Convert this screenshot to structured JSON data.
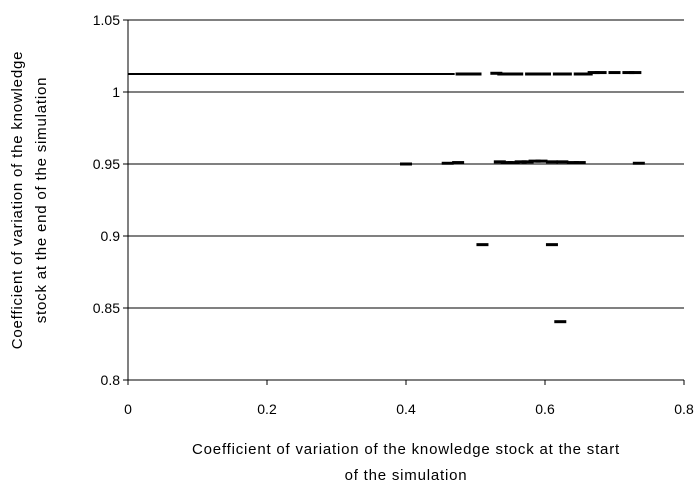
{
  "chart_data": {
    "type": "scatter",
    "title": "",
    "xlabel_lines": [
      "Coefficient of variation of the knowledge stock at the start",
      "of the simulation"
    ],
    "ylabel_lines": [
      "Coefficient of variation of the knowledge",
      "stock at the end of the simulation"
    ],
    "xlim": [
      0,
      0.8
    ],
    "ylim": [
      0.8,
      1.05
    ],
    "x_ticks": [
      "0",
      "0.2",
      "0.4",
      "0.6",
      "0.8"
    ],
    "y_ticks": [
      "0.8",
      "0.85",
      "0.9",
      "0.95",
      "1",
      "1.05"
    ],
    "x_tick_values": [
      0,
      0.2,
      0.4,
      0.6,
      0.8
    ],
    "y_tick_values": [
      0.8,
      0.85,
      0.9,
      0.95,
      1.0,
      1.05
    ],
    "gridlines": "horizontal",
    "legend": "none",
    "marker": "dash",
    "marker_color": "#000000",
    "reference_line": {
      "y": 1.0125,
      "x_from": 0,
      "x_to": 0.47
    },
    "points": [
      {
        "x": 0.48,
        "y": 1.0125
      },
      {
        "x": 0.49,
        "y": 1.0125
      },
      {
        "x": 0.5,
        "y": 1.0125
      },
      {
        "x": 0.53,
        "y": 1.013
      },
      {
        "x": 0.54,
        "y": 1.0125
      },
      {
        "x": 0.55,
        "y": 1.0125
      },
      {
        "x": 0.56,
        "y": 1.0125
      },
      {
        "x": 0.58,
        "y": 1.0125
      },
      {
        "x": 0.59,
        "y": 1.0125
      },
      {
        "x": 0.6,
        "y": 1.0125
      },
      {
        "x": 0.62,
        "y": 1.0125
      },
      {
        "x": 0.63,
        "y": 1.0125
      },
      {
        "x": 0.65,
        "y": 1.0125
      },
      {
        "x": 0.66,
        "y": 1.0125
      },
      {
        "x": 0.67,
        "y": 1.0135
      },
      {
        "x": 0.68,
        "y": 1.0135
      },
      {
        "x": 0.7,
        "y": 1.0135
      },
      {
        "x": 0.72,
        "y": 1.0135
      },
      {
        "x": 0.73,
        "y": 1.0135
      },
      {
        "x": 0.4,
        "y": 0.95
      },
      {
        "x": 0.46,
        "y": 0.9505
      },
      {
        "x": 0.475,
        "y": 0.951
      },
      {
        "x": 0.535,
        "y": 0.9515
      },
      {
        "x": 0.545,
        "y": 0.951
      },
      {
        "x": 0.555,
        "y": 0.951
      },
      {
        "x": 0.565,
        "y": 0.9515
      },
      {
        "x": 0.575,
        "y": 0.9515
      },
      {
        "x": 0.585,
        "y": 0.952
      },
      {
        "x": 0.595,
        "y": 0.952
      },
      {
        "x": 0.61,
        "y": 0.9515
      },
      {
        "x": 0.625,
        "y": 0.9515
      },
      {
        "x": 0.64,
        "y": 0.951
      },
      {
        "x": 0.65,
        "y": 0.951
      },
      {
        "x": 0.735,
        "y": 0.9505
      },
      {
        "x": 0.51,
        "y": 0.894
      },
      {
        "x": 0.61,
        "y": 0.894
      },
      {
        "x": 0.622,
        "y": 0.8405
      }
    ]
  }
}
